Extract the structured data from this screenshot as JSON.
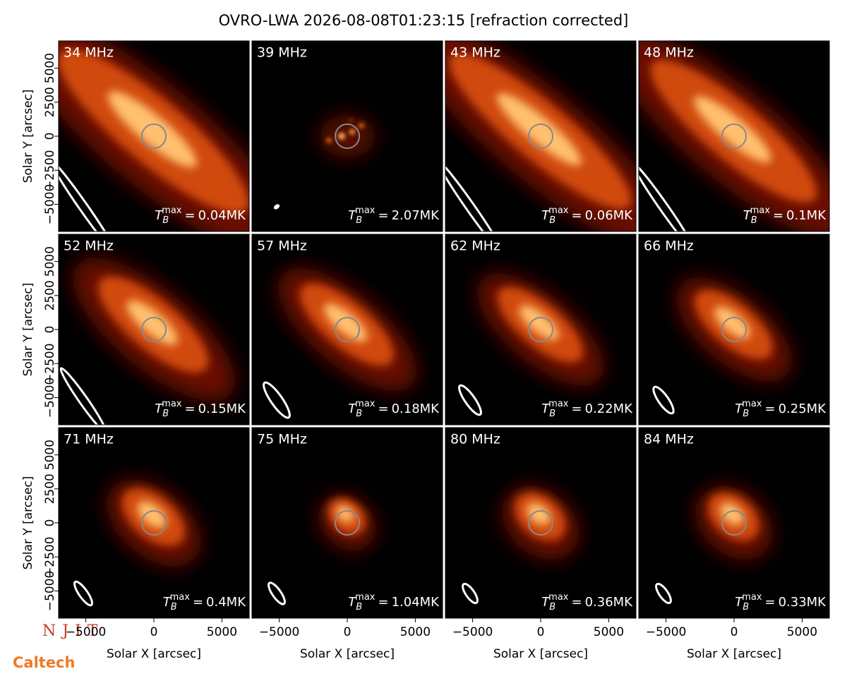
{
  "chart_data": {
    "type": "image_grid",
    "title": "OVRO-LWA 2026-08-08T01:23:15 [refraction corrected]",
    "xlabel": "Solar X [arcsec]",
    "ylabel": "Solar Y [arcsec]",
    "xlim": [
      -7000,
      7000
    ],
    "ylim": [
      -7000,
      7000
    ],
    "xticks": [
      {
        "value": -5000,
        "label": "−5000"
      },
      0,
      5000
    ],
    "yticks": [
      {
        "value": -5000,
        "label": "−5000"
      },
      {
        "value": -2500,
        "label": "−2500"
      },
      0,
      2500,
      5000
    ],
    "tb_symbol": "T",
    "tb_sub": "B",
    "tb_sup": "max",
    "tb_eq": "=",
    "panels": [
      {
        "label": "34 MHz",
        "tmax": "0.04MK"
      },
      {
        "label": "39 MHz",
        "tmax": "2.07MK"
      },
      {
        "label": "43 MHz",
        "tmax": "0.06MK"
      },
      {
        "label": "48 MHz",
        "tmax": "0.1MK"
      },
      {
        "label": "52 MHz",
        "tmax": "0.15MK"
      },
      {
        "label": "57 MHz",
        "tmax": "0.18MK"
      },
      {
        "label": "62 MHz",
        "tmax": "0.22MK"
      },
      {
        "label": "66 MHz",
        "tmax": "0.25MK"
      },
      {
        "label": "71 MHz",
        "tmax": "0.4MK"
      },
      {
        "label": "75 MHz",
        "tmax": "1.04MK"
      },
      {
        "label": "80 MHz",
        "tmax": "0.36MK"
      },
      {
        "label": "84 MHz",
        "tmax": "0.33MK"
      }
    ],
    "logos": [
      "NJIT",
      "Caltech"
    ]
  }
}
